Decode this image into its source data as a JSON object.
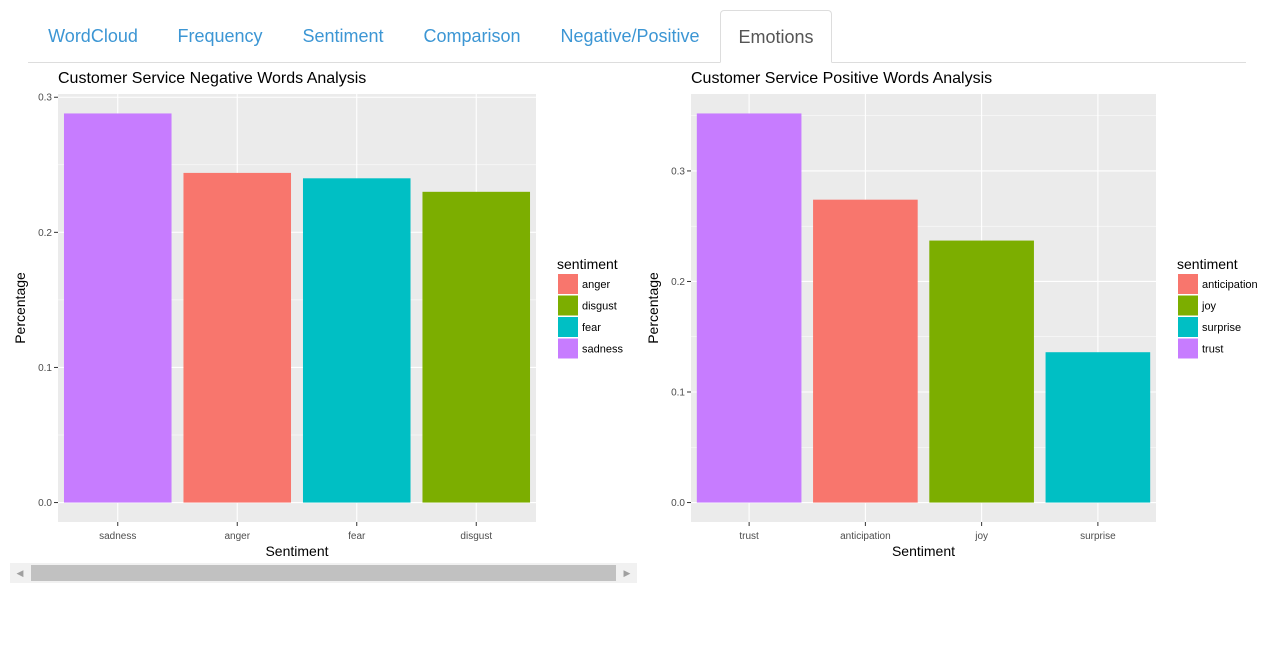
{
  "tabs": [
    {
      "label": "WordCloud",
      "active": false
    },
    {
      "label": "Frequency",
      "active": false
    },
    {
      "label": "Sentiment",
      "active": false
    },
    {
      "label": "Comparison",
      "active": false
    },
    {
      "label": "Negative/Positive",
      "active": false
    },
    {
      "label": "Emotions",
      "active": true
    }
  ],
  "colors": {
    "anger": "#F8766D",
    "disgust": "#7CAE00",
    "fear": "#00BFC4",
    "sadness": "#C77CFF",
    "panel_bg": "#EBEBEB",
    "tab_link": "#3C96D4"
  },
  "chart_data": [
    {
      "type": "bar",
      "title": "Customer Service Negative Words Analysis",
      "xlabel": "Sentiment",
      "ylabel": "Percentage",
      "categories": [
        "sadness",
        "anger",
        "fear",
        "disgust"
      ],
      "values": [
        0.288,
        0.244,
        0.24,
        0.23
      ],
      "bar_colors": [
        "#C77CFF",
        "#F8766D",
        "#00BFC4",
        "#7CAE00"
      ],
      "yticks": [
        0.0,
        0.1,
        0.2,
        0.3
      ],
      "ytick_labels": [
        "0.0",
        "0.1",
        "0.2",
        "0.3"
      ],
      "ylim": [
        -0.0144,
        0.3024
      ],
      "grid": true,
      "legend": {
        "title": "sentiment",
        "position": "right",
        "items": [
          {
            "label": "anger",
            "color": "#F8766D"
          },
          {
            "label": "disgust",
            "color": "#7CAE00"
          },
          {
            "label": "fear",
            "color": "#00BFC4"
          },
          {
            "label": "sadness",
            "color": "#C77CFF"
          }
        ]
      }
    },
    {
      "type": "bar",
      "title": "Customer Service Positive Words Analysis",
      "xlabel": "Sentiment",
      "ylabel": "Percentage",
      "categories": [
        "trust",
        "anticipation",
        "joy",
        "surprise"
      ],
      "values": [
        0.352,
        0.274,
        0.237,
        0.136
      ],
      "bar_colors": [
        "#C77CFF",
        "#F8766D",
        "#7CAE00",
        "#00BFC4"
      ],
      "yticks": [
        0.0,
        0.1,
        0.2,
        0.3
      ],
      "ytick_labels": [
        "0.0",
        "0.1",
        "0.2",
        "0.3"
      ],
      "ylim": [
        -0.0176,
        0.3696
      ],
      "grid": true,
      "legend": {
        "title": "sentiment",
        "position": "right",
        "items": [
          {
            "label": "anticipation",
            "color": "#F8766D"
          },
          {
            "label": "joy",
            "color": "#7CAE00"
          },
          {
            "label": "surprise",
            "color": "#00BFC4"
          },
          {
            "label": "trust",
            "color": "#C77CFF"
          }
        ]
      }
    }
  ]
}
